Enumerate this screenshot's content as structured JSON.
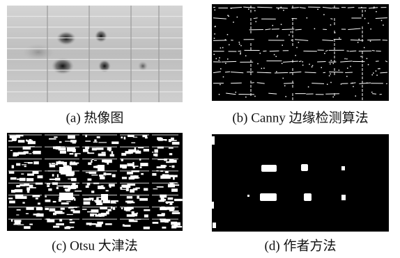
{
  "panels": [
    {
      "caption": "(a)  热像图"
    },
    {
      "caption": "(b) Canny 边缘检测算法"
    },
    {
      "caption": "(c) Otsu 大津法"
    },
    {
      "caption": "(d)  作者方法"
    }
  ]
}
